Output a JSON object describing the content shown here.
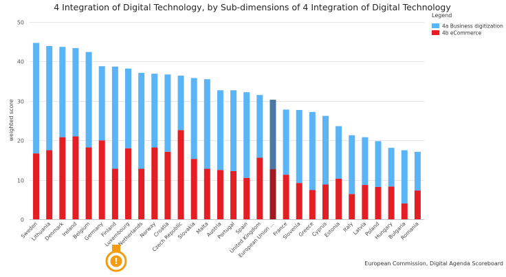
{
  "chart_data": {
    "type": "bar",
    "stacked": true,
    "title": "4 Integration of Digital Technology, by Sub-dimensions of 4 Integration of Digital Technology",
    "xlabel": "",
    "ylabel": "weighted score",
    "ylim": [
      0,
      50
    ],
    "yticks": [
      0,
      10,
      20,
      30,
      40,
      50
    ],
    "grid": true,
    "legend_title": "Legend",
    "legend_position": "top-right",
    "source": "European Commission, Digital Agenda Scoreboard",
    "highlight_category": "European Union ...",
    "categories": [
      "Sweden",
      "Lithuania",
      "Denmark",
      "Ireland",
      "Belgium",
      "Germany",
      "Finland",
      "Luxembourg",
      "Netherlands",
      "Norway",
      "Croatia",
      "Czech Republic",
      "Slovakia",
      "Malta",
      "Austria",
      "Portugal",
      "Spain",
      "United Kingdom",
      "European Union ...",
      "France",
      "Slovenia",
      "Greece",
      "Cyprus",
      "Estonia",
      "Italy",
      "Latvia",
      "Poland",
      "Hungary",
      "Bulgaria",
      "Romania"
    ],
    "series": [
      {
        "name": "4b eCommerce",
        "color": "#e31e24",
        "highlight_color": "#9e1b20",
        "values": [
          16.7,
          17.5,
          20.8,
          21.0,
          18.2,
          20.0,
          12.8,
          18.0,
          12.8,
          18.2,
          17.1,
          22.6,
          15.3,
          12.8,
          12.5,
          12.2,
          10.5,
          15.6,
          12.7,
          11.3,
          9.2,
          7.4,
          8.8,
          10.3,
          6.4,
          8.7,
          8.2,
          8.3,
          4.0,
          7.3
        ]
      },
      {
        "name": "4a Business digitization",
        "color": "#5bb4f5",
        "highlight_color": "#4a7aa3",
        "values": [
          28.0,
          26.4,
          22.9,
          22.4,
          24.2,
          18.8,
          25.9,
          20.2,
          24.3,
          18.7,
          19.6,
          13.8,
          20.5,
          22.7,
          20.2,
          20.5,
          21.7,
          15.9,
          17.6,
          16.5,
          18.5,
          19.8,
          17.4,
          13.3,
          14.9,
          12.1,
          11.6,
          9.8,
          13.5,
          9.8
        ]
      }
    ]
  }
}
